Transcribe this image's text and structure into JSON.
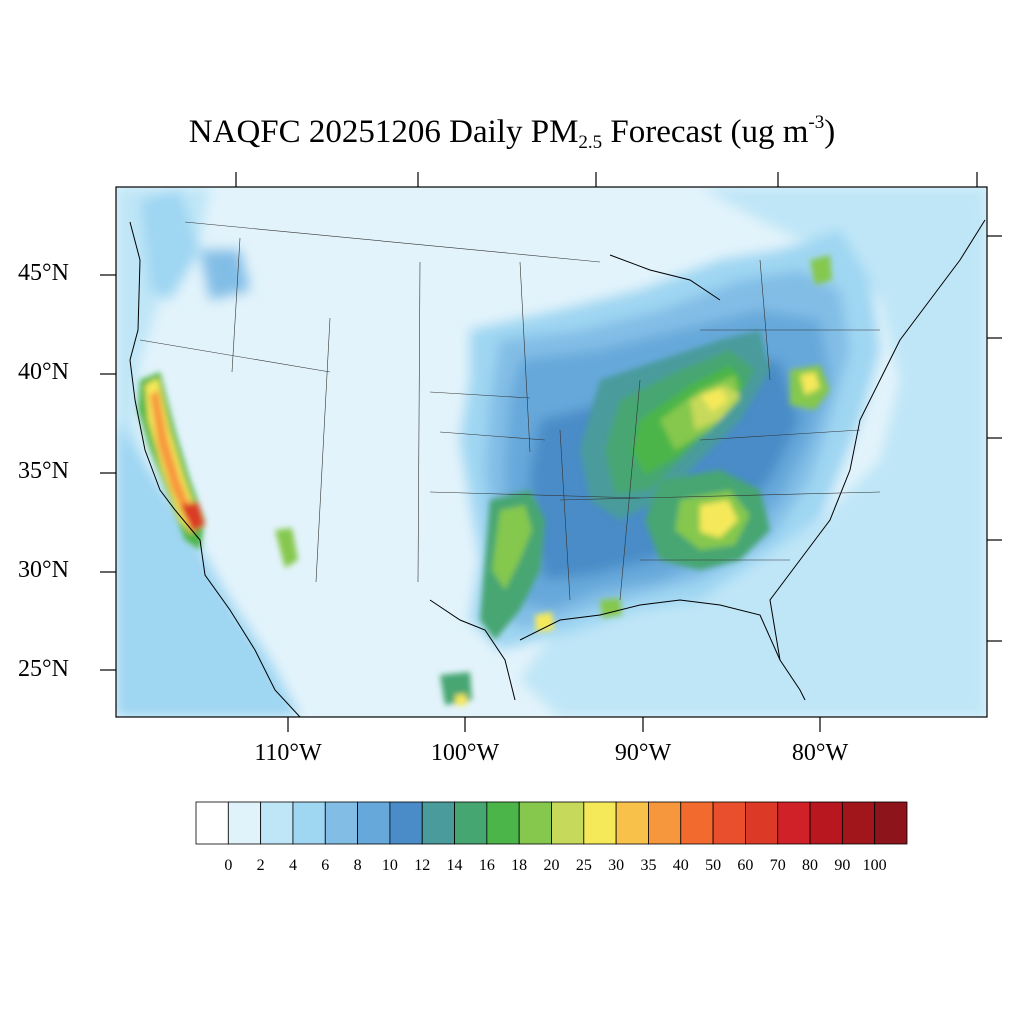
{
  "title": {
    "prefix": "NAQFC 20251206 Daily PM",
    "subscript": "2.5",
    "middle": " Forecast (ug m",
    "superscript": "-3",
    "suffix": ")"
  },
  "map": {
    "lat_labels": [
      "45°N",
      "40°N",
      "35°N",
      "30°N",
      "25°N"
    ],
    "lon_labels": [
      "110°W",
      "100°W",
      "90°W",
      "80°W"
    ],
    "background_color": "#e2f3fb"
  },
  "legend": {
    "tick_labels": [
      "0",
      "2",
      "4",
      "6",
      "8",
      "10",
      "12",
      "14",
      "16",
      "18",
      "20",
      "25",
      "30",
      "35",
      "40",
      "50",
      "60",
      "70",
      "80",
      "90",
      "100"
    ],
    "colors": [
      "#ffffff",
      "#e0f3fb",
      "#bfe6f7",
      "#9fd6f2",
      "#82bde6",
      "#66a8da",
      "#4a8cc7",
      "#4a9b9c",
      "#46a672",
      "#4cb54a",
      "#85c84d",
      "#c6d95a",
      "#f5e95a",
      "#f8c24a",
      "#f7973d",
      "#f26a2e",
      "#e94f2c",
      "#dc3a27",
      "#d02028",
      "#b8171f",
      "#a0161b",
      "#8c141a"
    ]
  }
}
